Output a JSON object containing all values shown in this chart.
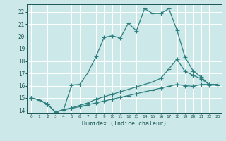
{
  "xlabel": "Humidex (Indice chaleur)",
  "bg_color": "#cce8e8",
  "grid_color": "#ffffff",
  "line_color": "#2d7f7f",
  "xlim": [
    -0.5,
    23.5
  ],
  "ylim": [
    13.8,
    22.6
  ],
  "yticks": [
    14,
    15,
    16,
    17,
    18,
    19,
    20,
    21,
    22
  ],
  "xticks": [
    0,
    1,
    2,
    3,
    4,
    5,
    6,
    7,
    8,
    9,
    10,
    11,
    12,
    13,
    14,
    15,
    16,
    17,
    18,
    19,
    20,
    21,
    22,
    23
  ],
  "line1_x": [
    0,
    1,
    2,
    3,
    4,
    5,
    6,
    7,
    8,
    9,
    10,
    11,
    12,
    13,
    14,
    15,
    16,
    17,
    18,
    19,
    20,
    21,
    22,
    23
  ],
  "line1_y": [
    15.0,
    14.85,
    14.5,
    13.85,
    14.05,
    16.05,
    16.1,
    17.05,
    18.35,
    19.9,
    20.05,
    19.85,
    21.05,
    20.45,
    22.25,
    21.85,
    21.85,
    22.25,
    20.5,
    18.3,
    17.2,
    16.7,
    16.05,
    16.05
  ],
  "line2_x": [
    0,
    1,
    2,
    3,
    4,
    5,
    6,
    7,
    8,
    9,
    10,
    11,
    12,
    13,
    14,
    15,
    16,
    17,
    18,
    19,
    20,
    21,
    22,
    23
  ],
  "line2_y": [
    15.0,
    14.85,
    14.5,
    13.85,
    14.05,
    14.2,
    14.4,
    14.6,
    14.9,
    15.1,
    15.3,
    15.5,
    15.7,
    15.9,
    16.1,
    16.3,
    16.6,
    17.35,
    18.15,
    17.15,
    16.85,
    16.55,
    16.1,
    16.1
  ],
  "line3_x": [
    0,
    1,
    2,
    3,
    4,
    5,
    6,
    7,
    8,
    9,
    10,
    11,
    12,
    13,
    14,
    15,
    16,
    17,
    18,
    19,
    20,
    21,
    22,
    23
  ],
  "line3_y": [
    15.0,
    14.85,
    14.5,
    13.85,
    14.05,
    14.15,
    14.3,
    14.45,
    14.6,
    14.75,
    14.9,
    15.05,
    15.2,
    15.35,
    15.5,
    15.65,
    15.8,
    15.95,
    16.1,
    16.0,
    15.95,
    16.1,
    16.1,
    16.1
  ]
}
